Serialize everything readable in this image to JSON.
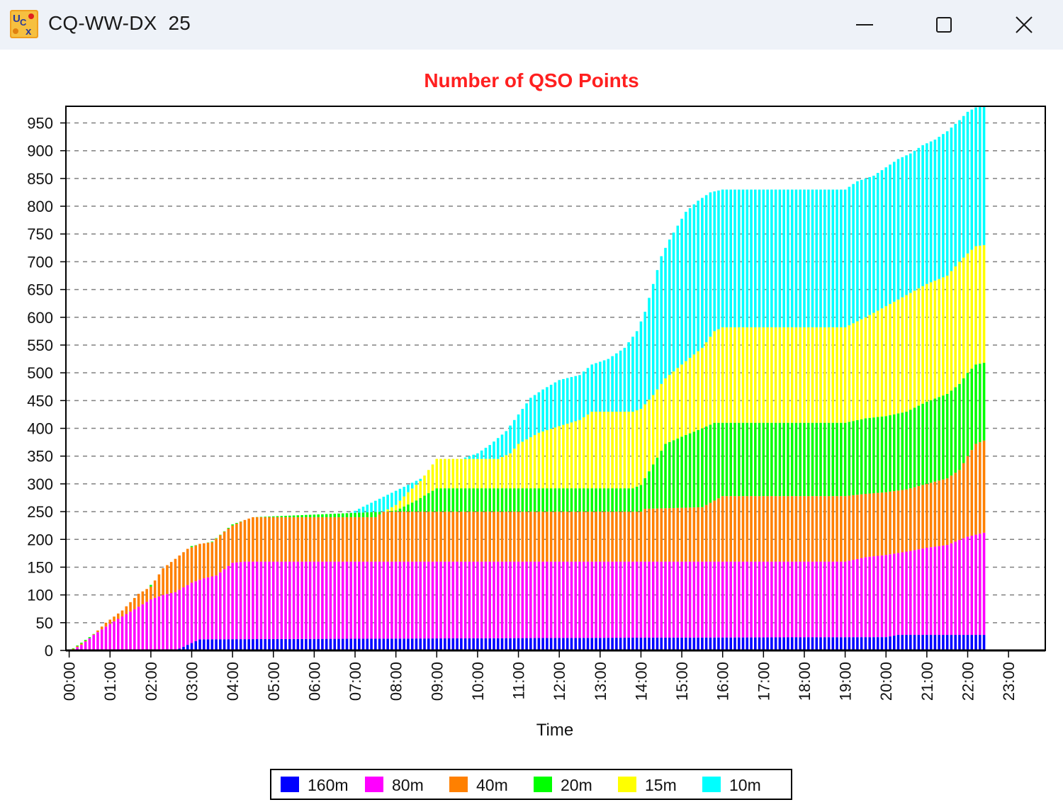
{
  "window": {
    "title": "CQ-WW-DX  25",
    "icon": "ucx-app-icon",
    "buttons": [
      "minimize-icon",
      "maximize-icon",
      "close-icon"
    ]
  },
  "chart_data": {
    "type": "bar",
    "stacked": true,
    "title": "Number of QSO Points",
    "title_color": "#ff2020",
    "xlabel": "Time",
    "ylabel": "",
    "ylim": [
      0,
      980
    ],
    "yticks": [
      0,
      50,
      100,
      150,
      200,
      250,
      300,
      350,
      400,
      450,
      500,
      550,
      600,
      650,
      700,
      750,
      800,
      850,
      900,
      950
    ],
    "x_tick_labels": [
      "00:00",
      "01:00",
      "02:00",
      "03:00",
      "04:00",
      "05:00",
      "06:00",
      "07:00",
      "08:00",
      "09:00",
      "10:00",
      "11:00",
      "12:00",
      "13:00",
      "14:00",
      "15:00",
      "16:00",
      "17:00",
      "18:00",
      "19:00",
      "20:00",
      "21:00",
      "22:00",
      "23:00"
    ],
    "x_unit": "hours",
    "xlim": [
      -0.08,
      23.9
    ],
    "grid": "horizontal-dashed",
    "legend_position": "bottom-center",
    "series": [
      {
        "name": "160m",
        "color": "#0000ff",
        "keypoints": [
          [
            0.1,
            0
          ],
          [
            2.6,
            0
          ],
          [
            3.2,
            20
          ],
          [
            14.0,
            23
          ],
          [
            20.0,
            24
          ],
          [
            20.3,
            28
          ],
          [
            22.4,
            28
          ]
        ]
      },
      {
        "name": "80m",
        "color": "#ff00ff",
        "keypoints": [
          [
            0.1,
            2
          ],
          [
            0.6,
            28
          ],
          [
            1.0,
            48
          ],
          [
            1.5,
            70
          ],
          [
            2.0,
            92
          ],
          [
            2.5,
            105
          ],
          [
            3.0,
            102
          ],
          [
            3.5,
            110
          ],
          [
            4.0,
            137
          ],
          [
            4.5,
            139
          ],
          [
            22.4,
            137
          ],
          [
            22.4,
            137
          ]
        ],
        "cumulative_total_keypoints": [
          [
            0.1,
            2
          ],
          [
            0.3,
            10
          ],
          [
            0.6,
            28
          ],
          [
            1.0,
            48
          ],
          [
            1.5,
            70
          ],
          [
            2.0,
            92
          ],
          [
            2.3,
            100
          ],
          [
            2.6,
            105
          ],
          [
            3.0,
            122
          ],
          [
            3.3,
            130
          ],
          [
            3.6,
            135
          ],
          [
            4.0,
            158
          ],
          [
            4.3,
            160
          ],
          [
            19.0,
            160
          ],
          [
            19.5,
            168
          ],
          [
            20.0,
            172
          ],
          [
            20.5,
            178
          ],
          [
            21.0,
            185
          ],
          [
            21.5,
            190
          ],
          [
            22.0,
            205
          ],
          [
            22.4,
            212
          ]
        ]
      },
      {
        "name": "40m",
        "color": "#ff8000",
        "cumulative_total_keypoints": [
          [
            0.1,
            3
          ],
          [
            0.5,
            22
          ],
          [
            0.9,
            50
          ],
          [
            1.3,
            72
          ],
          [
            1.7,
            102
          ],
          [
            2.0,
            115
          ],
          [
            2.3,
            148
          ],
          [
            2.6,
            165
          ],
          [
            2.9,
            183
          ],
          [
            3.2,
            192
          ],
          [
            3.5,
            195
          ],
          [
            3.8,
            214
          ],
          [
            4.0,
            225
          ],
          [
            4.3,
            235
          ],
          [
            4.5,
            240
          ],
          [
            7.5,
            240
          ],
          [
            7.7,
            250
          ],
          [
            14.0,
            250
          ],
          [
            14.05,
            255
          ],
          [
            15.5,
            258
          ],
          [
            15.8,
            270
          ],
          [
            16.0,
            278
          ],
          [
            19.0,
            278
          ],
          [
            19.5,
            282
          ],
          [
            20.0,
            285
          ],
          [
            20.5,
            290
          ],
          [
            21.0,
            300
          ],
          [
            21.5,
            310
          ],
          [
            21.8,
            325
          ],
          [
            22.0,
            350
          ],
          [
            22.2,
            372
          ],
          [
            22.4,
            378
          ]
        ]
      },
      {
        "name": "20m",
        "color": "#00ff00",
        "cumulative_total_keypoints": [
          [
            0.1,
            4
          ],
          [
            0.5,
            24
          ],
          [
            1.0,
            52
          ],
          [
            1.5,
            77
          ],
          [
            2.0,
            118
          ],
          [
            2.5,
            152
          ],
          [
            3.0,
            188
          ],
          [
            3.5,
            196
          ],
          [
            4.0,
            227
          ],
          [
            4.5,
            240
          ],
          [
            7.7,
            250
          ],
          [
            8.0,
            252
          ],
          [
            8.5,
            270
          ],
          [
            9.0,
            292
          ],
          [
            13.8,
            292
          ],
          [
            14.0,
            298
          ],
          [
            14.3,
            335
          ],
          [
            14.6,
            372
          ],
          [
            15.0,
            385
          ],
          [
            15.5,
            400
          ],
          [
            15.8,
            410
          ],
          [
            19.0,
            410
          ],
          [
            19.5,
            418
          ],
          [
            20.0,
            422
          ],
          [
            20.5,
            430
          ],
          [
            21.0,
            448
          ],
          [
            21.5,
            462
          ],
          [
            21.8,
            480
          ],
          [
            22.0,
            500
          ],
          [
            22.2,
            515
          ],
          [
            22.4,
            518
          ]
        ]
      },
      {
        "name": "15m",
        "color": "#ffff00",
        "cumulative_total_keypoints": [
          [
            0.1,
            4
          ],
          [
            7.7,
            250
          ],
          [
            8.0,
            262
          ],
          [
            8.3,
            285
          ],
          [
            8.6,
            305
          ],
          [
            9.0,
            345
          ],
          [
            10.5,
            345
          ],
          [
            10.8,
            355
          ],
          [
            11.0,
            372
          ],
          [
            11.5,
            392
          ],
          [
            12.0,
            404
          ],
          [
            12.5,
            415
          ],
          [
            12.8,
            430
          ],
          [
            13.8,
            430
          ],
          [
            14.0,
            435
          ],
          [
            14.3,
            460
          ],
          [
            14.6,
            490
          ],
          [
            15.0,
            515
          ],
          [
            15.5,
            545
          ],
          [
            15.8,
            575
          ],
          [
            16.0,
            582
          ],
          [
            19.0,
            582
          ],
          [
            19.5,
            600
          ],
          [
            20.0,
            620
          ],
          [
            20.5,
            640
          ],
          [
            21.0,
            660
          ],
          [
            21.5,
            675
          ],
          [
            21.8,
            700
          ],
          [
            22.0,
            715
          ],
          [
            22.2,
            728
          ],
          [
            22.4,
            730
          ]
        ]
      },
      {
        "name": "10m",
        "color": "#00ffff",
        "cumulative_total_keypoints": [
          [
            0.1,
            4
          ],
          [
            9.6,
            345
          ],
          [
            10.0,
            355
          ],
          [
            10.3,
            370
          ],
          [
            10.7,
            395
          ],
          [
            11.0,
            425
          ],
          [
            11.3,
            455
          ],
          [
            11.6,
            470
          ],
          [
            12.0,
            487
          ],
          [
            12.5,
            496
          ],
          [
            12.8,
            515
          ],
          [
            13.2,
            525
          ],
          [
            13.6,
            545
          ],
          [
            13.9,
            575
          ],
          [
            14.1,
            610
          ],
          [
            14.3,
            660
          ],
          [
            14.5,
            710
          ],
          [
            14.7,
            740
          ],
          [
            14.9,
            765
          ],
          [
            15.1,
            790
          ],
          [
            15.4,
            810
          ],
          [
            15.7,
            825
          ],
          [
            16.0,
            830
          ],
          [
            19.0,
            830
          ],
          [
            19.3,
            845
          ],
          [
            19.7,
            855
          ],
          [
            20.0,
            870
          ],
          [
            20.3,
            885
          ],
          [
            20.6,
            895
          ],
          [
            20.9,
            910
          ],
          [
            21.2,
            920
          ],
          [
            21.5,
            935
          ],
          [
            21.8,
            955
          ],
          [
            22.0,
            970
          ],
          [
            22.2,
            978
          ],
          [
            22.4,
            980
          ]
        ]
      }
    ],
    "bar_interval_hours": 0.1,
    "bar_range_hours": [
      0.1,
      22.4
    ]
  }
}
